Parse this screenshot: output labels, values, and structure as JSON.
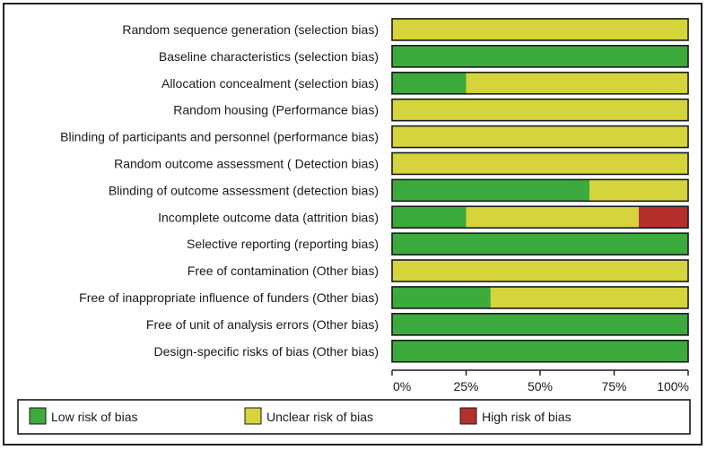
{
  "chart_data": {
    "type": "bar",
    "orientation": "horizontal",
    "stacked": true,
    "categories": [
      "Random sequence generation (selection bias)",
      "Baseline characteristics (selection bias)",
      "Allocation concealment (selection bias)",
      "Random housing (Performance bias)",
      "Blinding of participants and personnel (performance bias)",
      "Random outcome assessment ( Detection bias)",
      "Blinding of outcome assessment (detection bias)",
      "Incomplete outcome data (attrition bias)",
      "Selective reporting (reporting bias)",
      "Free of contamination (Other bias)",
      "Free of inappropriate influence of funders (Other bias)",
      "Free of unit of analysis errors (Other bias)",
      "Design-specific risks of bias (Other bias)"
    ],
    "series": [
      {
        "name": "Low risk of bias",
        "color": "#3caa3c",
        "values": [
          0,
          100,
          25,
          0,
          0,
          0,
          66.7,
          25,
          100,
          0,
          33.3,
          100,
          100
        ]
      },
      {
        "name": "Unclear risk of bias",
        "color": "#d6d43c",
        "values": [
          100,
          0,
          75,
          100,
          100,
          100,
          33.3,
          58.3,
          0,
          100,
          66.7,
          0,
          0
        ]
      },
      {
        "name": "High risk of bias",
        "color": "#b5302a",
        "values": [
          0,
          0,
          0,
          0,
          0,
          0,
          0,
          16.7,
          0,
          0,
          0,
          0,
          0
        ]
      }
    ],
    "xlim": [
      0,
      100
    ],
    "xticks": [
      "0%",
      "25%",
      "50%",
      "75%",
      "100%"
    ],
    "legend_position": "bottom",
    "grid": false
  }
}
